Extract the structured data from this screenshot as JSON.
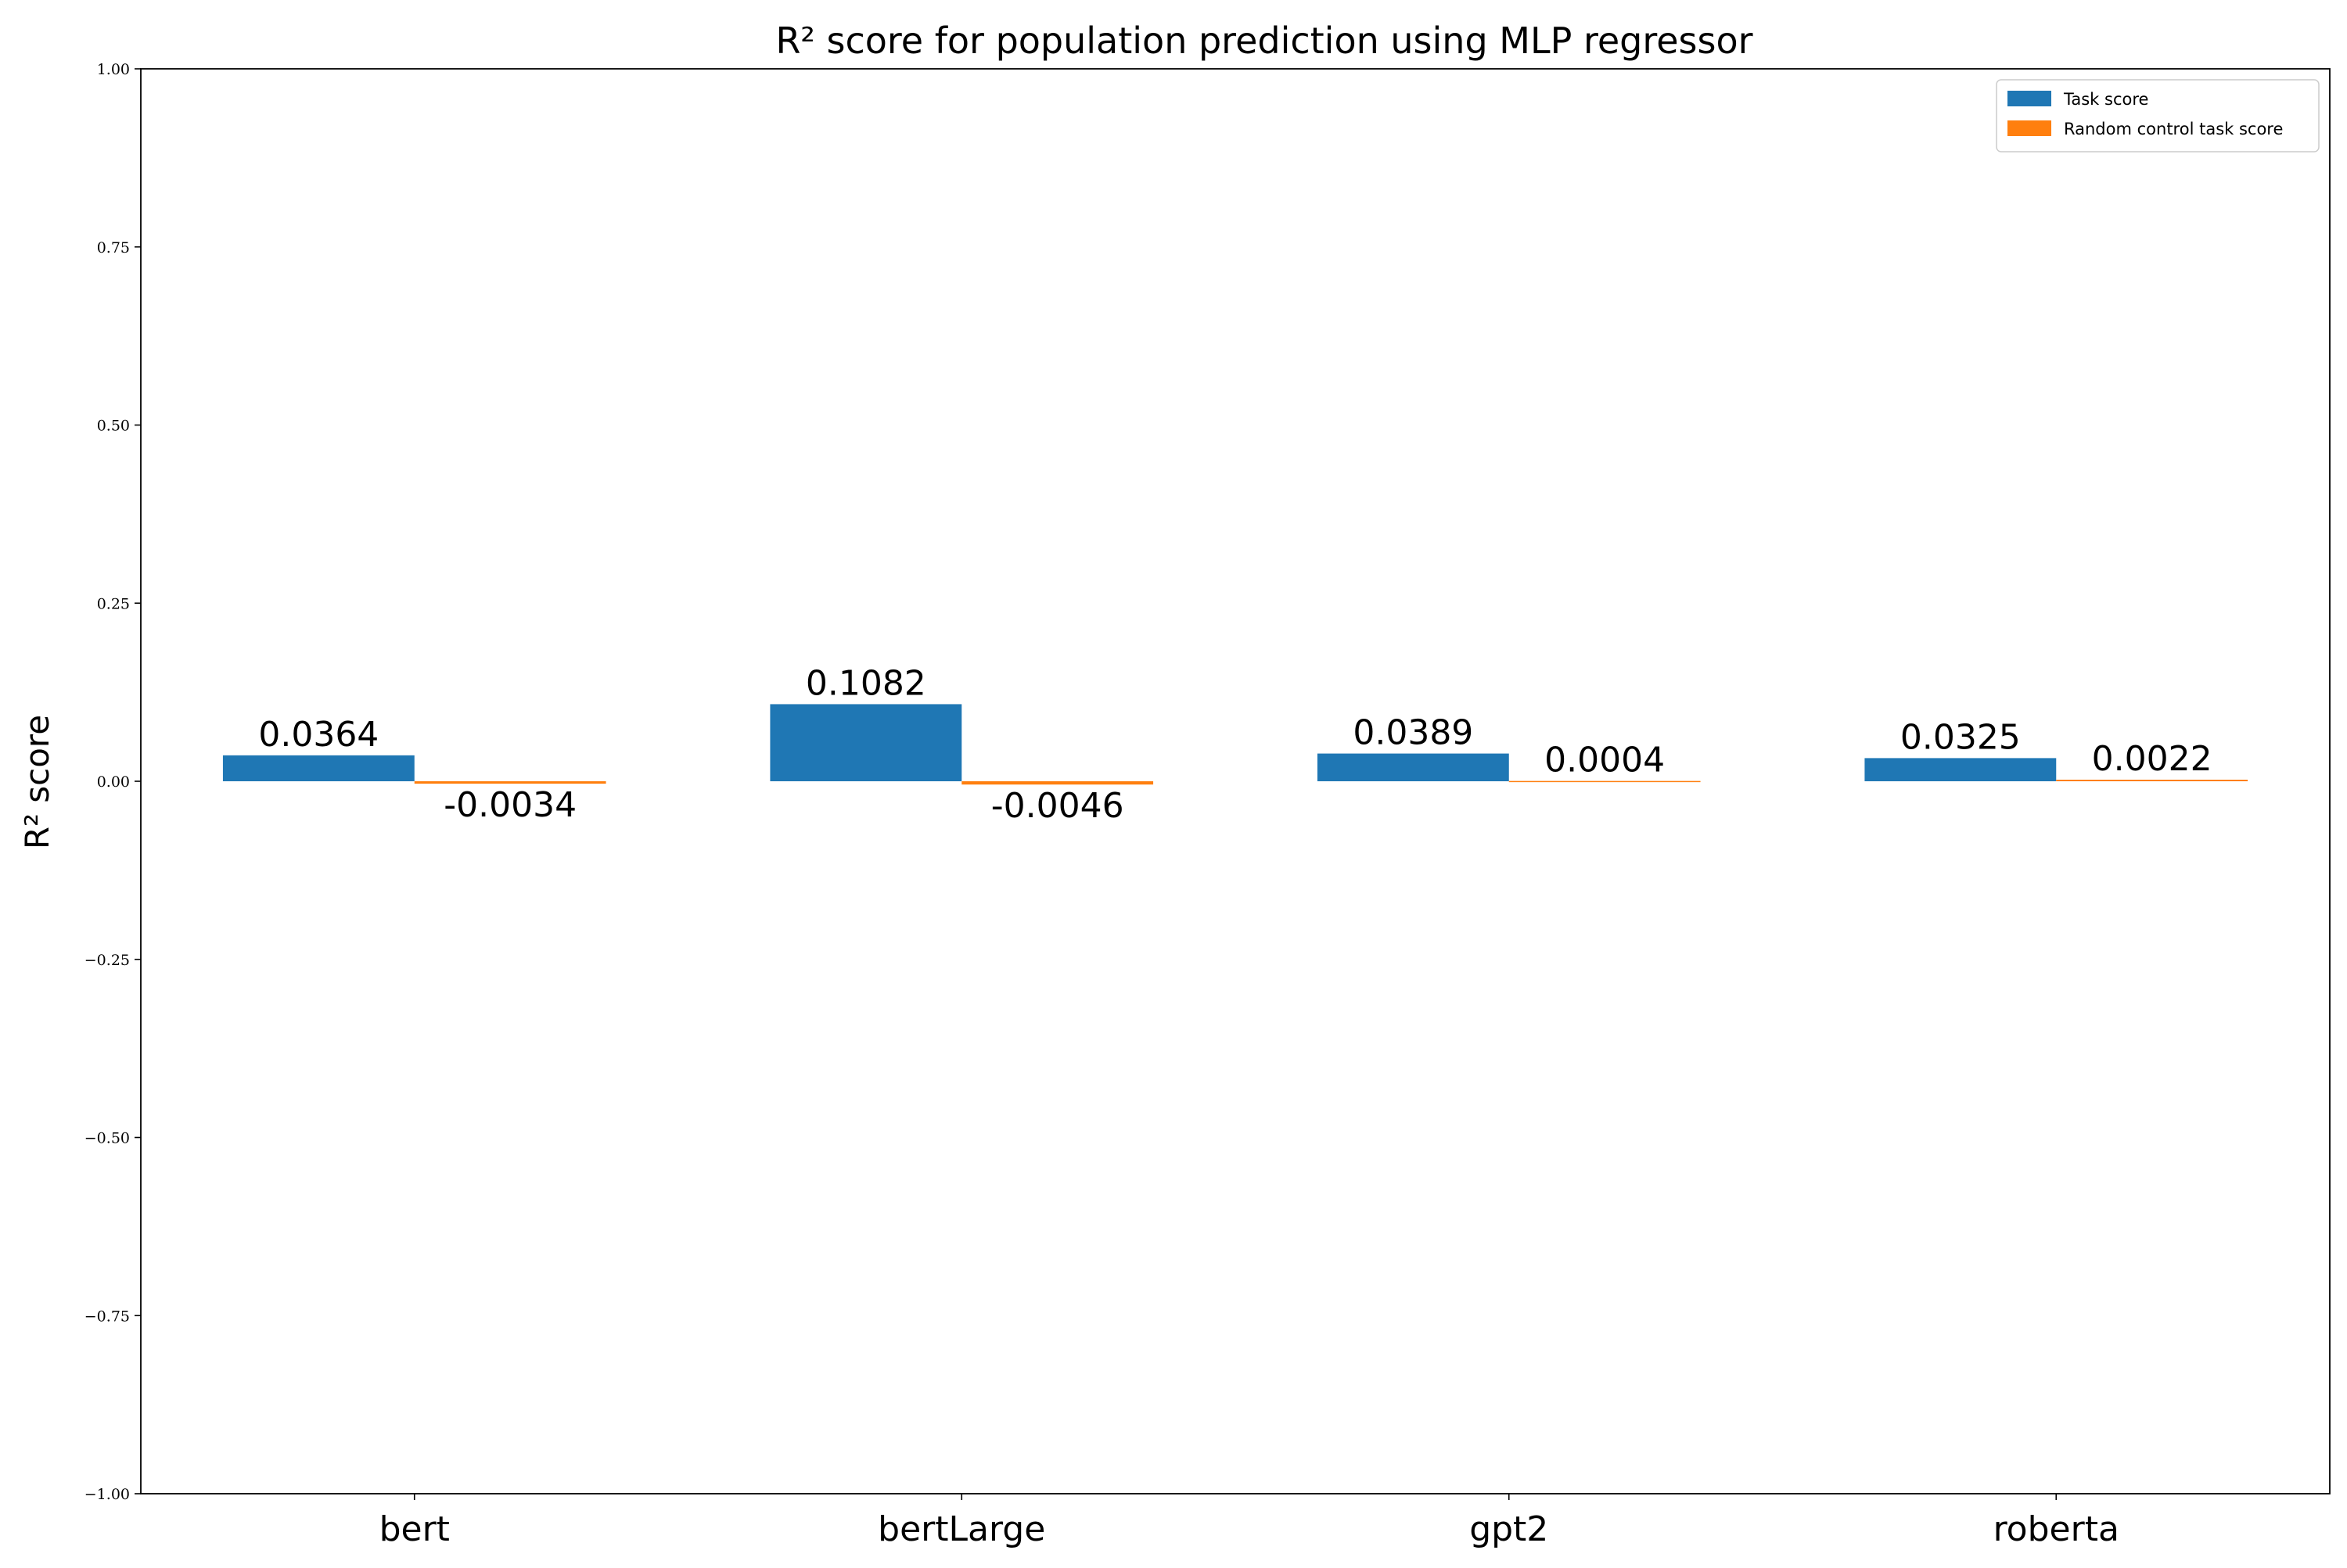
{
  "chart_data": {
    "type": "bar",
    "title": "R² score for population prediction using MLP regressor",
    "xlabel": "",
    "ylabel": "R² score",
    "ylim": [
      -1.0,
      1.0
    ],
    "yticks": [
      -1.0,
      -0.75,
      -0.5,
      -0.25,
      0.0,
      0.25,
      0.5,
      0.75,
      1.0
    ],
    "ytick_labels": [
      "−1.00",
      "−0.75",
      "−0.50",
      "−0.25",
      "0.00",
      "0.25",
      "0.50",
      "0.75",
      "1.00"
    ],
    "grid": false,
    "legend_position": "top-right",
    "categories": [
      "bert",
      "bertLarge",
      "gpt2",
      "roberta"
    ],
    "series": [
      {
        "name": "Task score",
        "color": "#1f77b4",
        "values": [
          0.0364,
          0.1082,
          0.0389,
          0.0325
        ],
        "labels": [
          "0.0364",
          "0.1082",
          "0.0389",
          "0.0325"
        ]
      },
      {
        "name": "Random control task score",
        "color": "#ff7f0e",
        "values": [
          -0.0034,
          -0.0046,
          0.0004,
          0.0022
        ],
        "labels": [
          "-0.0034",
          "-0.0046",
          "0.0004",
          "0.0022"
        ]
      }
    ]
  }
}
